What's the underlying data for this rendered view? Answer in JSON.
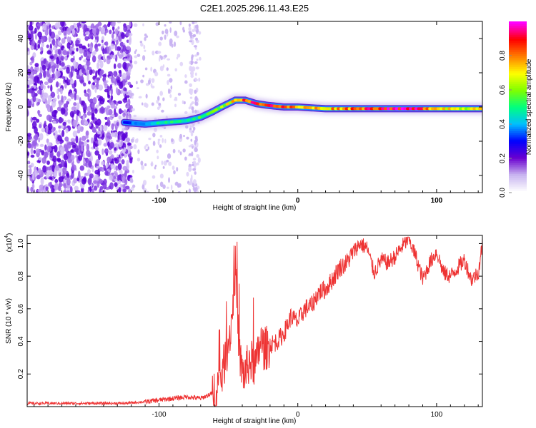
{
  "chart_data": [
    {
      "type": "heatmap",
      "title": "C2E1.2025.296.11.43.E25",
      "xlabel": "Height of straight line (km)",
      "ylabel": "Frequency (Hz)",
      "xlim": [
        -195,
        133
      ],
      "ylim": [
        -50,
        50
      ],
      "xticks": [
        -100,
        0,
        100
      ],
      "yticks": [
        -40,
        -20,
        0,
        20,
        40
      ],
      "colorbar": {
        "label": "Normalized spectral amplitude",
        "range": [
          0,
          1
        ],
        "ticks": [
          "0.0",
          "0.2",
          "0.4",
          "0.6",
          "0.8"
        ],
        "colors": [
          "#ffffff",
          "#c8b4f0",
          "#6a00d0",
          "#0000ff",
          "#00bfff",
          "#00ff7f",
          "#7fff00",
          "#ffff00",
          "#ff7f00",
          "#ff0000",
          "#ff00ff"
        ]
      },
      "ridge": {
        "description_free_points": true,
        "x": [
          -125,
          -110,
          -95,
          -80,
          -70,
          -62,
          -55,
          -50,
          -45,
          -38,
          -30,
          -22,
          -10,
          0,
          20,
          40,
          60,
          80,
          100,
          120,
          133
        ],
        "y": [
          -9,
          -10,
          -9,
          -8,
          -6,
          -3,
          0,
          2,
          4,
          4,
          2,
          1,
          0,
          0,
          -1,
          -1,
          -1,
          -1,
          -1,
          -1,
          -1
        ],
        "amplitude": [
          0.35,
          0.45,
          0.5,
          0.55,
          0.55,
          0.6,
          0.65,
          0.75,
          0.85,
          0.9,
          0.95,
          1.0,
          0.9,
          0.8,
          0.8,
          0.9,
          1.0,
          1.0,
          0.85,
          0.7,
          0.9
        ]
      },
      "noise_region_km": [
        -195,
        -120
      ]
    },
    {
      "type": "line",
      "xlabel": "Height of straight line (km)",
      "ylabel": "SNR (10 * v/v)",
      "y_multiplier_label": "(x10",
      "y_multiplier_exp": "4",
      "y_multiplier_close": ")",
      "xlim": [
        -195,
        133
      ],
      "ylim": [
        0,
        1.05
      ],
      "xticks": [
        -100,
        0,
        100
      ],
      "yticks": [
        0.2,
        0.4,
        0.6,
        0.8,
        1.0
      ],
      "ytick_labels": [
        "0.2",
        "0.4",
        "0.6",
        "0.8",
        "1.0"
      ],
      "series": [
        {
          "name": "SNR",
          "color": "#ee3333",
          "x": [
            -195,
            -175,
            -150,
            -125,
            -110,
            -100,
            -90,
            -80,
            -70,
            -62,
            -56,
            -52,
            -48,
            -45,
            -42,
            -40,
            -38,
            -35,
            -30,
            -27,
            -24,
            -20,
            -15,
            -10,
            -5,
            0,
            5,
            10,
            15,
            20,
            25,
            30,
            35,
            40,
            45,
            50,
            55,
            60,
            65,
            70,
            75,
            80,
            85,
            90,
            95,
            100,
            105,
            110,
            115,
            120,
            125,
            130,
            133
          ],
          "y": [
            0.02,
            0.02,
            0.02,
            0.02,
            0.03,
            0.04,
            0.05,
            0.06,
            0.05,
            0.08,
            0.15,
            0.3,
            0.5,
            0.85,
            0.3,
            0.22,
            0.2,
            0.28,
            0.25,
            0.4,
            0.35,
            0.38,
            0.4,
            0.45,
            0.55,
            0.52,
            0.6,
            0.62,
            0.7,
            0.72,
            0.78,
            0.85,
            0.88,
            0.95,
            1.0,
            0.97,
            0.82,
            0.9,
            0.88,
            0.92,
            0.98,
            1.03,
            0.92,
            0.78,
            0.88,
            0.95,
            0.82,
            0.8,
            0.85,
            0.9,
            0.78,
            0.82,
            1.0
          ]
        }
      ]
    }
  ]
}
